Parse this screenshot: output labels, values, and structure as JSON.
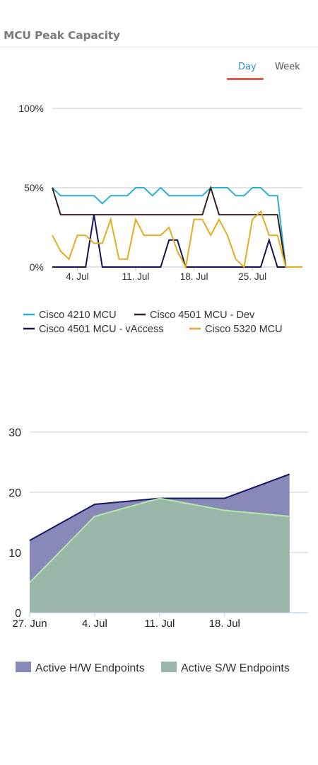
{
  "panel": {
    "title": "MCU Peak Capacity"
  },
  "tabs": [
    {
      "label": "Day",
      "active": true
    },
    {
      "label": "Week",
      "active": false
    }
  ],
  "colors": {
    "tab_active": "#2a8bd2",
    "tab_underline": "#e8574e"
  },
  "chart_data": [
    {
      "type": "line",
      "yticks": [
        "0%",
        "50%",
        "100%"
      ],
      "ylim": [
        0,
        100
      ],
      "xlim": [
        1,
        31
      ],
      "xticks": [
        {
          "x": 4,
          "label": "4. Jul"
        },
        {
          "x": 11,
          "label": "11. Jul"
        },
        {
          "x": 18,
          "label": "18. Jul"
        },
        {
          "x": 25,
          "label": "25. Jul"
        }
      ],
      "grid": true,
      "legend": "bottom",
      "series": [
        {
          "name": "Cisco 4210 MCU",
          "color": "#2ab0cd",
          "values": [
            50,
            45,
            45,
            45,
            45,
            45,
            40,
            45,
            45,
            45,
            50,
            50,
            45,
            50,
            45,
            45,
            45,
            45,
            45,
            50,
            50,
            50,
            45,
            45,
            50,
            50,
            45,
            45,
            0,
            0,
            0
          ]
        },
        {
          "name": "Cisco 4501 MCU - Dev",
          "color": "#3c1e1e",
          "values": [
            50,
            33,
            33,
            33,
            33,
            33,
            33,
            33,
            33,
            33,
            33,
            33,
            33,
            33,
            33,
            33,
            33,
            33,
            33,
            50,
            33,
            33,
            33,
            33,
            33,
            33,
            33,
            33,
            0,
            0,
            0
          ]
        },
        {
          "name": "Cisco 4501 MCU - vAccess",
          "color": "#14145a",
          "values": [
            0,
            0,
            0,
            0,
            0,
            33,
            0,
            0,
            0,
            0,
            0,
            0,
            0,
            0,
            17,
            17,
            0,
            0,
            0,
            0,
            0,
            0,
            0,
            0,
            0,
            0,
            17,
            0,
            0,
            0,
            0
          ]
        },
        {
          "name": "Cisco 5320 MCU",
          "color": "#e3ad1f",
          "values": [
            20,
            10,
            5,
            20,
            20,
            15,
            15,
            30,
            5,
            5,
            30,
            20,
            20,
            20,
            25,
            10,
            0,
            30,
            30,
            20,
            30,
            20,
            5,
            0,
            30,
            35,
            20,
            20,
            0,
            0,
            0
          ]
        }
      ]
    },
    {
      "type": "area",
      "yticks": [
        "0",
        "10",
        "20",
        "30"
      ],
      "ylim": [
        0,
        30
      ],
      "xlim": [
        0,
        30
      ],
      "x": [
        0,
        7,
        14,
        21,
        28
      ],
      "xticks": [
        {
          "x": 0,
          "label": "27. Jun"
        },
        {
          "x": 7,
          "label": "4. Jul"
        },
        {
          "x": 14,
          "label": "11. Jul"
        },
        {
          "x": 21,
          "label": "18. Jul"
        }
      ],
      "grid": true,
      "legend": "bottom",
      "series": [
        {
          "name": "Active H/W Endpoints",
          "color": "#8889b8",
          "line_color": "#16196a",
          "values": [
            12,
            18,
            19,
            19,
            23
          ]
        },
        {
          "name": "Active S/W Endpoints",
          "color": "#9ab6a8",
          "line_color": "#b2e8a8",
          "values": [
            5,
            16,
            19,
            17,
            16
          ]
        }
      ]
    }
  ]
}
